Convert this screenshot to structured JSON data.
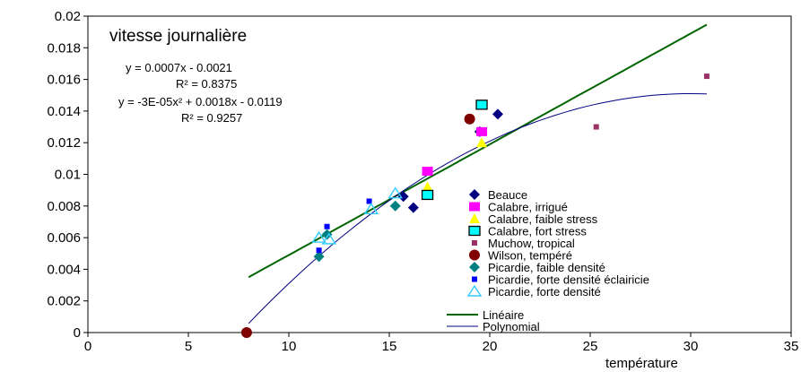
{
  "chart_data": {
    "type": "scatter",
    "title": "vitesse journalière",
    "xlabel": "température",
    "ylabel": "",
    "xlim": [
      0,
      35
    ],
    "ylim": [
      0,
      0.02
    ],
    "x_ticks": [
      "0",
      "5",
      "10",
      "15",
      "20",
      "25",
      "30",
      "35"
    ],
    "y_ticks": [
      "0",
      "0.002",
      "0.004",
      "0.006",
      "0.008",
      "0.01",
      "0.012",
      "0.014",
      "0.016",
      "0.018",
      "0.02"
    ],
    "grid": false,
    "legend_position": "bottom-right",
    "annotations": {
      "linear_eq": "y = 0.0007x - 0.0021",
      "linear_r2": "R² = 0.8375",
      "poly_eq": "y = -3E-05x² + 0.0018x - 0.0119",
      "poly_r2": "R² = 0.9257"
    },
    "series": [
      {
        "name": "Beauce",
        "marker": "diamond",
        "color": "#000080",
        "points": [
          [
            15.7,
            0.0086
          ],
          [
            16.2,
            0.0079
          ],
          [
            19.5,
            0.0127
          ],
          [
            20.4,
            0.0138
          ]
        ]
      },
      {
        "name": "Calabre, irrigué",
        "marker": "square",
        "color": "#ff00ff",
        "points": [
          [
            16.9,
            0.0102
          ],
          [
            19.6,
            0.0127
          ]
        ]
      },
      {
        "name": "Calabre, faible stress",
        "marker": "triangle",
        "color": "#ffff00",
        "points": [
          [
            16.9,
            0.0092
          ],
          [
            19.6,
            0.012
          ]
        ]
      },
      {
        "name": "Calabre, fort stress",
        "marker": "square-outline",
        "color": "#00ffff",
        "points": [
          [
            16.9,
            0.0087
          ],
          [
            19.6,
            0.0144
          ]
        ]
      },
      {
        "name": "Muchow, tropical",
        "marker": "small-square",
        "color": "#993366",
        "points": [
          [
            25.3,
            0.013
          ],
          [
            30.8,
            0.0162
          ]
        ]
      },
      {
        "name": "Wilson, tempéré",
        "marker": "circle",
        "color": "#800000",
        "points": [
          [
            7.9,
            0.0
          ],
          [
            19.0,
            0.0135
          ]
        ]
      },
      {
        "name": "Picardie, faible densité",
        "marker": "diamond",
        "color": "#008080",
        "points": [
          [
            11.5,
            0.0048
          ],
          [
            11.9,
            0.0062
          ],
          [
            15.3,
            0.008
          ]
        ]
      },
      {
        "name": "Picardie, forte densité éclairicie",
        "marker": "small-square",
        "color": "#0000ff",
        "points": [
          [
            11.5,
            0.0052
          ],
          [
            11.9,
            0.0067
          ],
          [
            14.0,
            0.0083
          ]
        ]
      },
      {
        "name": "Picardie, forte densité",
        "marker": "triangle-outline",
        "color": "#33ccff",
        "points": [
          [
            11.5,
            0.006
          ],
          [
            12.0,
            0.0059
          ],
          [
            14.1,
            0.0078
          ],
          [
            15.3,
            0.0088
          ]
        ]
      }
    ],
    "fits": [
      {
        "name": "Linéaire",
        "type": "linear",
        "color": "#006400",
        "coef": [
          0.0007,
          -0.0021
        ],
        "x_range": [
          8.0,
          30.8
        ]
      },
      {
        "name": "Polynomial",
        "type": "poly2",
        "color": "#000080",
        "coef": [
          -3e-05,
          0.0018,
          -0.0119
        ],
        "x_range": [
          8.0,
          30.8
        ]
      }
    ]
  }
}
